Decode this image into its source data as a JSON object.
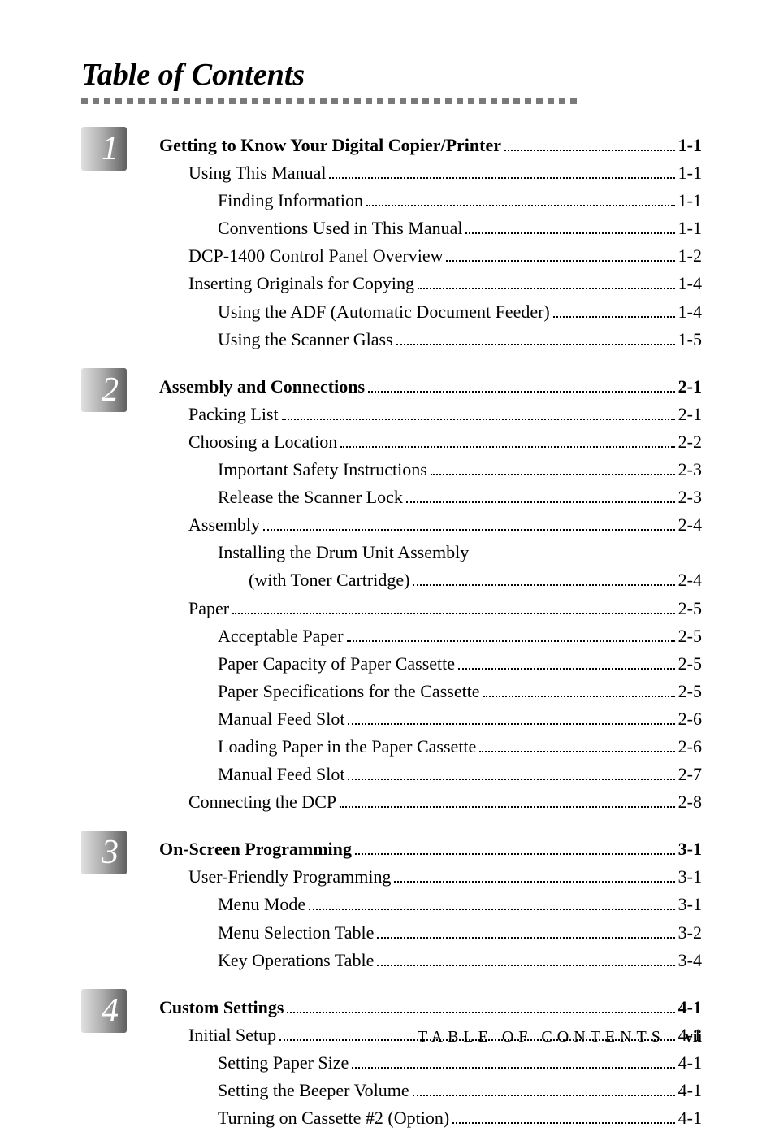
{
  "title": "Table of Contents",
  "footer_label": "TABLE OF CONTENTS",
  "footer_page": "vii",
  "chapters": [
    {
      "num": "1",
      "heading": {
        "label": "Getting to Know Your Digital Copier/Printer",
        "page": "1-1"
      },
      "entries": [
        {
          "level": 1,
          "label": "Using This Manual",
          "page": "1-1"
        },
        {
          "level": 2,
          "label": "Finding Information",
          "page": "1-1"
        },
        {
          "level": 2,
          "label": "Conventions Used in This Manual",
          "page": "1-1"
        },
        {
          "level": 1,
          "label": "DCP-1400 Control Panel Overview",
          "page": "1-2"
        },
        {
          "level": 1,
          "label": "Inserting Originals for Copying",
          "page": "1-4"
        },
        {
          "level": 2,
          "label": "Using the ADF (Automatic Document Feeder)",
          "page": "1-4"
        },
        {
          "level": 2,
          "label": "Using the Scanner Glass",
          "page": "1-5"
        }
      ]
    },
    {
      "num": "2",
      "heading": {
        "label": "Assembly and Connections",
        "page": "2-1"
      },
      "entries": [
        {
          "level": 1,
          "label": "Packing List",
          "page": "2-1"
        },
        {
          "level": 1,
          "label": "Choosing a Location",
          "page": "2-2"
        },
        {
          "level": 2,
          "label": "Important Safety Instructions",
          "page": "2-3"
        },
        {
          "level": 2,
          "label": "Release the Scanner Lock",
          "page": "2-3"
        },
        {
          "level": 1,
          "label": "Assembly",
          "page": "2-4"
        },
        {
          "level": 2,
          "label": "Installing the Drum Unit Assembly",
          "page": ""
        },
        {
          "level": "wrap",
          "label": "(with Toner Cartridge)",
          "page": "2-4"
        },
        {
          "level": 1,
          "label": "Paper",
          "page": "2-5"
        },
        {
          "level": 2,
          "label": "Acceptable Paper",
          "page": "2-5"
        },
        {
          "level": 2,
          "label": "Paper Capacity of Paper Cassette",
          "page": "2-5"
        },
        {
          "level": 2,
          "label": "Paper Specifications for the Cassette",
          "page": "2-5"
        },
        {
          "level": 2,
          "label": "Manual Feed Slot",
          "page": "2-6"
        },
        {
          "level": 2,
          "label": "Loading Paper in the Paper Cassette",
          "page": "2-6"
        },
        {
          "level": 2,
          "label": "Manual Feed Slot",
          "page": "2-7"
        },
        {
          "level": 1,
          "label": "Connecting the DCP",
          "page": "2-8"
        }
      ]
    },
    {
      "num": "3",
      "heading": {
        "label": "On-Screen Programming",
        "page": "3-1"
      },
      "entries": [
        {
          "level": 1,
          "label": "User-Friendly Programming",
          "page": "3-1"
        },
        {
          "level": 2,
          "label": "Menu Mode",
          "page": "3-1"
        },
        {
          "level": 2,
          "label": "Menu Selection Table",
          "page": "3-2"
        },
        {
          "level": 2,
          "label": "Key Operations Table",
          "page": "3-4"
        }
      ]
    },
    {
      "num": "4",
      "heading": {
        "label": "Custom Settings",
        "page": "4-1"
      },
      "entries": [
        {
          "level": 1,
          "label": "Initial Setup",
          "page": "4-1"
        },
        {
          "level": 2,
          "label": "Setting Paper Size",
          "page": "4-1"
        },
        {
          "level": 2,
          "label": "Setting the Beeper Volume",
          "page": "4-1"
        },
        {
          "level": 2,
          "label": "Turning on Cassette #2 (Option)",
          "page": "4-1"
        }
      ]
    }
  ],
  "divider_count": 44
}
